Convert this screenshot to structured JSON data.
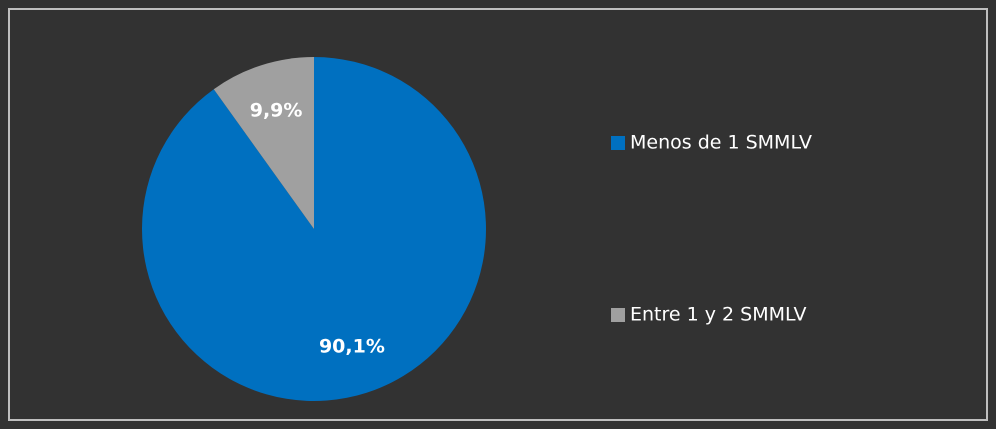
{
  "chart_data": {
    "type": "pie",
    "categories": [
      "Menos de 1 SMMLV",
      "Entre 1 y 2 SMMLV"
    ],
    "values": [
      90.1,
      9.9
    ],
    "value_labels": [
      "90,1%",
      "9,9%"
    ],
    "colors": [
      "#0070c0",
      "#a0a0a0"
    ],
    "start_angle": 0,
    "direction": "clockwise",
    "legend": "right"
  }
}
